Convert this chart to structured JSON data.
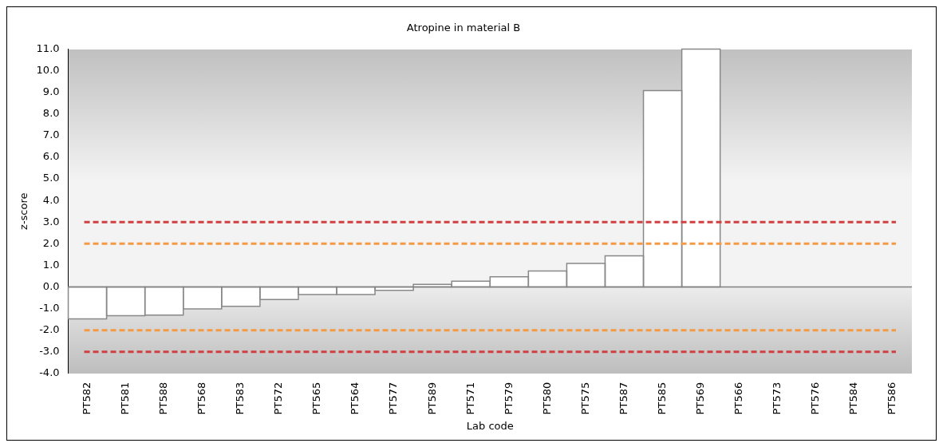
{
  "chart_data": {
    "type": "bar",
    "title": "Atropine in material B",
    "xlabel": "Lab code",
    "ylabel": "z-score",
    "categories": [
      "PT582",
      "PT581",
      "PT588",
      "PT568",
      "PT583",
      "PT572",
      "PT565",
      "PT564",
      "PT577",
      "PT589",
      "PT571",
      "PT579",
      "PT580",
      "PT575",
      "PT587",
      "PT585",
      "PT569",
      "PT566",
      "PT573",
      "PT576",
      "PT584",
      "PT586"
    ],
    "values": [
      -1.48,
      -1.33,
      -1.3,
      -1.02,
      -0.9,
      -0.58,
      -0.35,
      -0.35,
      -0.16,
      0.12,
      0.27,
      0.47,
      0.74,
      1.09,
      1.44,
      9.08,
      11,
      null,
      null,
      null,
      null,
      null
    ],
    "color": "#ffffff",
    "ylim": [
      -4,
      11
    ],
    "yticks": [
      {
        "value": -4,
        "label": "-4.0"
      },
      {
        "value": -3,
        "label": "-3.0"
      },
      {
        "value": -2,
        "label": "-2.0"
      },
      {
        "value": -1,
        "label": "-1.0"
      },
      {
        "value": 0,
        "label": "0.0"
      },
      {
        "value": 1,
        "label": "1.0"
      },
      {
        "value": 2,
        "label": "2.0"
      },
      {
        "value": 3,
        "label": "3.0"
      },
      {
        "value": 4,
        "label": "4.0"
      },
      {
        "value": 5,
        "label": "5.0"
      },
      {
        "value": 6,
        "label": "6.0"
      },
      {
        "value": 7,
        "label": "7.0"
      },
      {
        "value": 8,
        "label": "8.0"
      },
      {
        "value": 9,
        "label": "9.0"
      },
      {
        "value": 10,
        "label": "10.0"
      },
      {
        "value": 11,
        "label": "11.0"
      }
    ],
    "ref_lines": [
      {
        "axis": "y",
        "value": 3,
        "color": "#d04040",
        "line_style": "dashed"
      },
      {
        "axis": "y",
        "value": 2,
        "color": "#f59a44",
        "line_style": "dashed"
      },
      {
        "axis": "y",
        "value": -2,
        "color": "#f59a44",
        "line_style": "dashed"
      },
      {
        "axis": "y",
        "value": -3,
        "color": "#d04040",
        "line_style": "dashed"
      }
    ],
    "grid": false,
    "legend": false
  }
}
